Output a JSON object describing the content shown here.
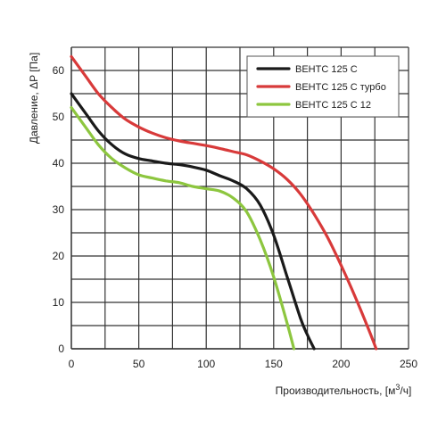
{
  "chart_data": {
    "type": "line",
    "xlabel": "Производительность, [м³/ч]",
    "xlabel_main": "Производительность, [м",
    "xlabel_sup": "3",
    "xlabel_end": "/ч]",
    "ylabel": "Давление, ΔP [Па]",
    "xlim": [
      0,
      250
    ],
    "ylim": [
      0,
      65
    ],
    "x_ticks": [
      "0",
      "50",
      "100",
      "150",
      "200",
      "250"
    ],
    "y_ticks": [
      "0",
      "10",
      "20",
      "30",
      "40",
      "50",
      "60"
    ],
    "grid": true,
    "legend_position": "top-right",
    "series": [
      {
        "name": "ВЕНТС 125 С",
        "color": "#1a1a1a",
        "x": [
          0,
          10,
          20,
          30,
          40,
          50,
          60,
          70,
          80,
          90,
          100,
          110,
          120,
          130,
          140,
          150,
          160,
          170,
          175,
          180
        ],
        "y": [
          55,
          51,
          47,
          44,
          42,
          41,
          40.5,
          40,
          39.7,
          39.2,
          38.5,
          37.3,
          36.2,
          34.5,
          31,
          24.5,
          15.5,
          6.5,
          3,
          0
        ]
      },
      {
        "name": "ВЕНТС 125 С турбо",
        "color": "#d83a3a",
        "x": [
          0,
          10,
          20,
          30,
          40,
          50,
          60,
          70,
          80,
          90,
          100,
          110,
          120,
          130,
          140,
          150,
          160,
          170,
          180,
          190,
          200,
          210,
          220,
          226
        ],
        "y": [
          63,
          59,
          55,
          52,
          49.5,
          47.8,
          46.5,
          45.5,
          44.8,
          44.3,
          43.8,
          43.2,
          42.5,
          41.8,
          40.5,
          38.8,
          36.5,
          33.3,
          29,
          24,
          18,
          11.5,
          4.5,
          0
        ]
      },
      {
        "name": "ВЕНТС 125 С 12",
        "color": "#8dc63f",
        "x": [
          0,
          10,
          20,
          30,
          40,
          50,
          60,
          70,
          80,
          90,
          100,
          110,
          120,
          130,
          140,
          150,
          160,
          165
        ],
        "y": [
          52,
          48,
          44,
          41,
          39,
          37.5,
          36.8,
          36.2,
          35.8,
          35,
          34.5,
          34,
          32.5,
          29.5,
          23.5,
          15.5,
          5.5,
          0
        ]
      }
    ]
  }
}
